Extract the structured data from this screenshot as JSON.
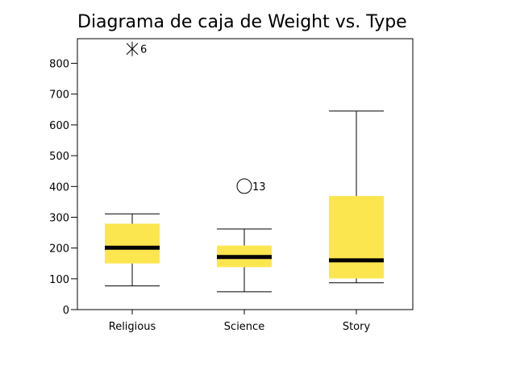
{
  "chart_data": {
    "type": "boxplot",
    "title": "Diagrama de caja de Weight vs. Type",
    "xlabel": "",
    "ylabel": "",
    "ylim": [
      0,
      880
    ],
    "yticks": [
      0,
      100,
      200,
      300,
      400,
      500,
      600,
      700,
      800
    ],
    "categories": [
      "Religious",
      "Science",
      "Story"
    ],
    "boxes": [
      {
        "category": "Religious",
        "min": 77,
        "q1": 150,
        "median": 201,
        "q3": 279,
        "max": 311
      },
      {
        "category": "Science",
        "min": 58,
        "q1": 138,
        "median": 171,
        "q3": 208,
        "max": 262
      },
      {
        "category": "Story",
        "min": 87,
        "q1": 101,
        "median": 160,
        "q3": 369,
        "max": 645
      }
    ],
    "outliers": [
      {
        "category": "Religious",
        "value": 847,
        "label": "6",
        "marker": "extreme"
      },
      {
        "category": "Science",
        "value": 401,
        "label": "13",
        "marker": "outlier"
      }
    ],
    "grid": false,
    "colors": {
      "box_fill": "#FCE64F",
      "median": "#000000",
      "axis": "#000000"
    }
  }
}
